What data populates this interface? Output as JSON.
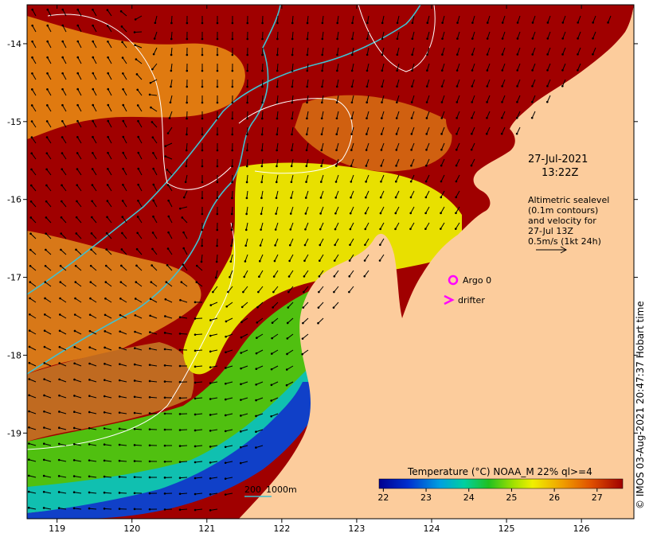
{
  "map": {
    "lon_ticks": [
      "119",
      "120",
      "121",
      "122",
      "123",
      "124",
      "125",
      "126"
    ],
    "lat_ticks": [
      "-14",
      "-15",
      "-16",
      "-17",
      "-18",
      "-19"
    ],
    "lon_range": [
      118.6,
      126.7
    ],
    "lat_range": [
      -20.1,
      -13.5
    ]
  },
  "timestamp": {
    "date": "27-Jul-2021",
    "time": "13:22Z"
  },
  "altimetry_note": {
    "line1": "Altimetric sealevel",
    "line2": "(0.1m contours)",
    "line3": "and velocity for",
    "line4": "27-Jul 13Z",
    "line5": "0.5m/s (1kt 24h)"
  },
  "legend": {
    "argo_label": "Argo 0",
    "drifter_label": "drifter",
    "argo_color": "#ff00ff",
    "drifter_color": "#ff00ff"
  },
  "colorbar": {
    "title": "Temperature (°C) NOAA_M 22% ql>=4",
    "ticks": [
      "22",
      "23",
      "24",
      "25",
      "26",
      "27"
    ],
    "range": [
      21.9,
      27.6
    ]
  },
  "scale": {
    "shallow": "200",
    "deep": "1000m",
    "isobath_color": "#40c0d0"
  },
  "credit": "© IMOS 03-Aug-2021 20:47:37 Hobart time",
  "colors": {
    "land": "#fccc9c",
    "sst_hot": "#a00000"
  }
}
